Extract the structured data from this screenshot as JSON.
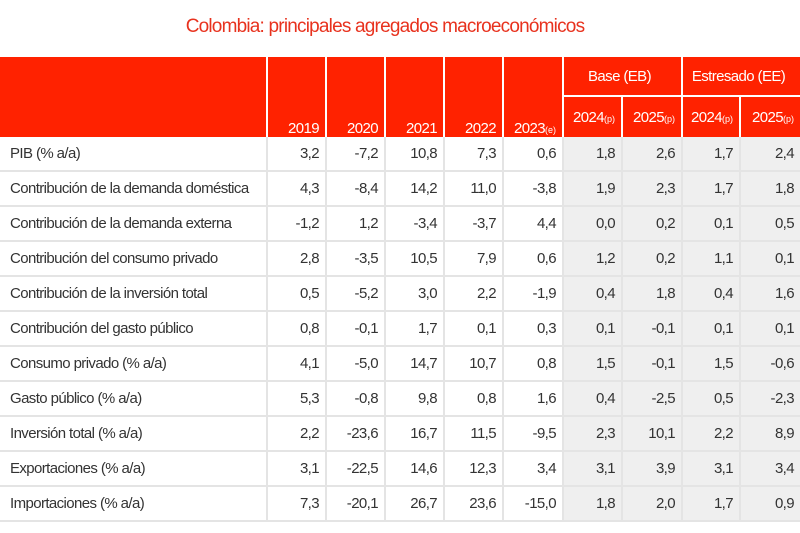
{
  "title": "Colombia: principales agregados macroeconómicos",
  "groups": {
    "base": "Base (EB)",
    "stress": "Estresado (EE)"
  },
  "years": [
    {
      "y": "2019",
      "s": ""
    },
    {
      "y": "2020",
      "s": ""
    },
    {
      "y": "2021",
      "s": ""
    },
    {
      "y": "2022",
      "s": ""
    },
    {
      "y": "2023",
      "s": "(e)"
    },
    {
      "y": "2024",
      "s": "(p)"
    },
    {
      "y": "2025",
      "s": "(p)"
    },
    {
      "y": "2024",
      "s": "(p)"
    },
    {
      "y": "2025",
      "s": "(p)"
    }
  ],
  "rows": [
    {
      "label": "PIB (% a/a)",
      "values": [
        "3,2",
        "-7,2",
        "10,8",
        "7,3",
        "0,6",
        "1,8",
        "2,6",
        "1,7",
        "2,4"
      ]
    },
    {
      "label": "Contribución de la demanda doméstica",
      "values": [
        "4,3",
        "-8,4",
        "14,2",
        "11,0",
        "-3,8",
        "1,9",
        "2,3",
        "1,7",
        "1,8"
      ]
    },
    {
      "label": "Contribución de la demanda externa",
      "values": [
        "-1,2",
        "1,2",
        "-3,4",
        "-3,7",
        "4,4",
        "0,0",
        "0,2",
        "0,1",
        "0,5"
      ]
    },
    {
      "label": "Contribución del consumo privado",
      "values": [
        "2,8",
        "-3,5",
        "10,5",
        "7,9",
        "0,6",
        "1,2",
        "0,2",
        "1,1",
        "0,1"
      ]
    },
    {
      "label": "Contribución de la inversión total",
      "values": [
        "0,5",
        "-5,2",
        "3,0",
        "2,2",
        "-1,9",
        "0,4",
        "1,8",
        "0,4",
        "1,6"
      ]
    },
    {
      "label": "Contribución del gasto público",
      "values": [
        "0,8",
        "-0,1",
        "1,7",
        "0,1",
        "0,3",
        "0,1",
        "-0,1",
        "0,1",
        "0,1"
      ]
    },
    {
      "label": "Consumo privado (% a/a)",
      "values": [
        "4,1",
        "-5,0",
        "14,7",
        "10,7",
        "0,8",
        "1,5",
        "-0,1",
        "1,5",
        "-0,6"
      ]
    },
    {
      "label": "Gasto público (% a/a)",
      "values": [
        "5,3",
        "-0,8",
        "9,8",
        "0,8",
        "1,6",
        "0,4",
        "-2,5",
        "0,5",
        "-2,3"
      ]
    },
    {
      "label": "Inversión total (% a/a)",
      "values": [
        "2,2",
        "-23,6",
        "16,7",
        "11,5",
        "-9,5",
        "2,3",
        "10,1",
        "2,2",
        "8,9"
      ]
    },
    {
      "label": "Exportaciones (% a/a)",
      "values": [
        "3,1",
        "-22,5",
        "14,6",
        "12,3",
        "3,4",
        "3,1",
        "3,9",
        "3,1",
        "3,4"
      ]
    },
    {
      "label": "Importaciones (% a/a)",
      "values": [
        "7,3",
        "-20,1",
        "26,7",
        "23,6",
        "-15,0",
        "1,8",
        "2,0",
        "1,7",
        "0,9"
      ]
    }
  ],
  "colors": {
    "header": "#ff2200",
    "title": "#e8321e",
    "shade": "#efefef"
  }
}
